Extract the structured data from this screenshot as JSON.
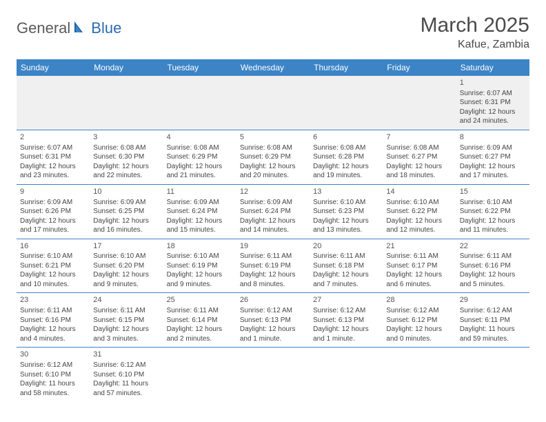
{
  "logo": {
    "general": "General",
    "blue": "Blue"
  },
  "title": "March 2025",
  "location": "Kafue, Zambia",
  "colors": {
    "header_bg": "#3c84c6",
    "header_text": "#ffffff",
    "border": "#3c84c6",
    "empty_bg": "#f0f0f0",
    "body_text": "#444444",
    "title_text": "#4a4a4a",
    "logo_gray": "#5a5a5a",
    "logo_blue": "#2a6bb3"
  },
  "fonts": {
    "month_title_size": 30,
    "location_size": 16,
    "weekday_size": 12,
    "daynum_size": 11,
    "cell_size": 10
  },
  "weekdays": [
    "Sunday",
    "Monday",
    "Tuesday",
    "Wednesday",
    "Thursday",
    "Friday",
    "Saturday"
  ],
  "weeks": [
    [
      null,
      null,
      null,
      null,
      null,
      null,
      {
        "n": "1",
        "sr": "Sunrise: 6:07 AM",
        "ss": "Sunset: 6:31 PM",
        "d1": "Daylight: 12 hours",
        "d2": "and 24 minutes."
      }
    ],
    [
      {
        "n": "2",
        "sr": "Sunrise: 6:07 AM",
        "ss": "Sunset: 6:31 PM",
        "d1": "Daylight: 12 hours",
        "d2": "and 23 minutes."
      },
      {
        "n": "3",
        "sr": "Sunrise: 6:08 AM",
        "ss": "Sunset: 6:30 PM",
        "d1": "Daylight: 12 hours",
        "d2": "and 22 minutes."
      },
      {
        "n": "4",
        "sr": "Sunrise: 6:08 AM",
        "ss": "Sunset: 6:29 PM",
        "d1": "Daylight: 12 hours",
        "d2": "and 21 minutes."
      },
      {
        "n": "5",
        "sr": "Sunrise: 6:08 AM",
        "ss": "Sunset: 6:29 PM",
        "d1": "Daylight: 12 hours",
        "d2": "and 20 minutes."
      },
      {
        "n": "6",
        "sr": "Sunrise: 6:08 AM",
        "ss": "Sunset: 6:28 PM",
        "d1": "Daylight: 12 hours",
        "d2": "and 19 minutes."
      },
      {
        "n": "7",
        "sr": "Sunrise: 6:08 AM",
        "ss": "Sunset: 6:27 PM",
        "d1": "Daylight: 12 hours",
        "d2": "and 18 minutes."
      },
      {
        "n": "8",
        "sr": "Sunrise: 6:09 AM",
        "ss": "Sunset: 6:27 PM",
        "d1": "Daylight: 12 hours",
        "d2": "and 17 minutes."
      }
    ],
    [
      {
        "n": "9",
        "sr": "Sunrise: 6:09 AM",
        "ss": "Sunset: 6:26 PM",
        "d1": "Daylight: 12 hours",
        "d2": "and 17 minutes."
      },
      {
        "n": "10",
        "sr": "Sunrise: 6:09 AM",
        "ss": "Sunset: 6:25 PM",
        "d1": "Daylight: 12 hours",
        "d2": "and 16 minutes."
      },
      {
        "n": "11",
        "sr": "Sunrise: 6:09 AM",
        "ss": "Sunset: 6:24 PM",
        "d1": "Daylight: 12 hours",
        "d2": "and 15 minutes."
      },
      {
        "n": "12",
        "sr": "Sunrise: 6:09 AM",
        "ss": "Sunset: 6:24 PM",
        "d1": "Daylight: 12 hours",
        "d2": "and 14 minutes."
      },
      {
        "n": "13",
        "sr": "Sunrise: 6:10 AM",
        "ss": "Sunset: 6:23 PM",
        "d1": "Daylight: 12 hours",
        "d2": "and 13 minutes."
      },
      {
        "n": "14",
        "sr": "Sunrise: 6:10 AM",
        "ss": "Sunset: 6:22 PM",
        "d1": "Daylight: 12 hours",
        "d2": "and 12 minutes."
      },
      {
        "n": "15",
        "sr": "Sunrise: 6:10 AM",
        "ss": "Sunset: 6:22 PM",
        "d1": "Daylight: 12 hours",
        "d2": "and 11 minutes."
      }
    ],
    [
      {
        "n": "16",
        "sr": "Sunrise: 6:10 AM",
        "ss": "Sunset: 6:21 PM",
        "d1": "Daylight: 12 hours",
        "d2": "and 10 minutes."
      },
      {
        "n": "17",
        "sr": "Sunrise: 6:10 AM",
        "ss": "Sunset: 6:20 PM",
        "d1": "Daylight: 12 hours",
        "d2": "and 9 minutes."
      },
      {
        "n": "18",
        "sr": "Sunrise: 6:10 AM",
        "ss": "Sunset: 6:19 PM",
        "d1": "Daylight: 12 hours",
        "d2": "and 9 minutes."
      },
      {
        "n": "19",
        "sr": "Sunrise: 6:11 AM",
        "ss": "Sunset: 6:19 PM",
        "d1": "Daylight: 12 hours",
        "d2": "and 8 minutes."
      },
      {
        "n": "20",
        "sr": "Sunrise: 6:11 AM",
        "ss": "Sunset: 6:18 PM",
        "d1": "Daylight: 12 hours",
        "d2": "and 7 minutes."
      },
      {
        "n": "21",
        "sr": "Sunrise: 6:11 AM",
        "ss": "Sunset: 6:17 PM",
        "d1": "Daylight: 12 hours",
        "d2": "and 6 minutes."
      },
      {
        "n": "22",
        "sr": "Sunrise: 6:11 AM",
        "ss": "Sunset: 6:16 PM",
        "d1": "Daylight: 12 hours",
        "d2": "and 5 minutes."
      }
    ],
    [
      {
        "n": "23",
        "sr": "Sunrise: 6:11 AM",
        "ss": "Sunset: 6:16 PM",
        "d1": "Daylight: 12 hours",
        "d2": "and 4 minutes."
      },
      {
        "n": "24",
        "sr": "Sunrise: 6:11 AM",
        "ss": "Sunset: 6:15 PM",
        "d1": "Daylight: 12 hours",
        "d2": "and 3 minutes."
      },
      {
        "n": "25",
        "sr": "Sunrise: 6:11 AM",
        "ss": "Sunset: 6:14 PM",
        "d1": "Daylight: 12 hours",
        "d2": "and 2 minutes."
      },
      {
        "n": "26",
        "sr": "Sunrise: 6:12 AM",
        "ss": "Sunset: 6:13 PM",
        "d1": "Daylight: 12 hours",
        "d2": "and 1 minute."
      },
      {
        "n": "27",
        "sr": "Sunrise: 6:12 AM",
        "ss": "Sunset: 6:13 PM",
        "d1": "Daylight: 12 hours",
        "d2": "and 1 minute."
      },
      {
        "n": "28",
        "sr": "Sunrise: 6:12 AM",
        "ss": "Sunset: 6:12 PM",
        "d1": "Daylight: 12 hours",
        "d2": "and 0 minutes."
      },
      {
        "n": "29",
        "sr": "Sunrise: 6:12 AM",
        "ss": "Sunset: 6:11 PM",
        "d1": "Daylight: 11 hours",
        "d2": "and 59 minutes."
      }
    ],
    [
      {
        "n": "30",
        "sr": "Sunrise: 6:12 AM",
        "ss": "Sunset: 6:10 PM",
        "d1": "Daylight: 11 hours",
        "d2": "and 58 minutes."
      },
      {
        "n": "31",
        "sr": "Sunrise: 6:12 AM",
        "ss": "Sunset: 6:10 PM",
        "d1": "Daylight: 11 hours",
        "d2": "and 57 minutes."
      },
      null,
      null,
      null,
      null,
      null
    ]
  ]
}
